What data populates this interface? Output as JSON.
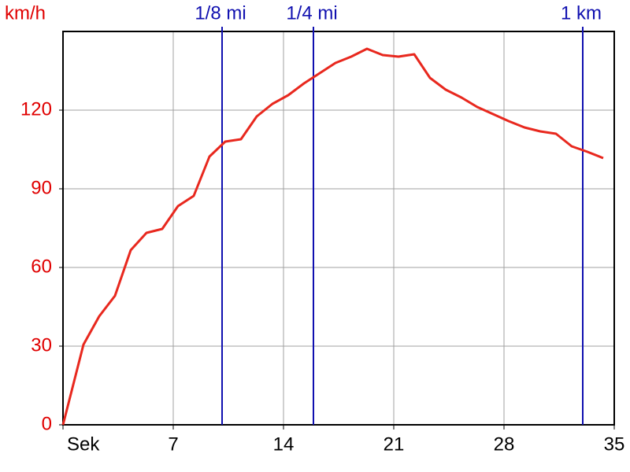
{
  "chart_data": {
    "type": "line",
    "y_label": "km/h",
    "xlim": [
      0,
      35
    ],
    "ylim": [
      0,
      150
    ],
    "xticks": [
      {
        "value": 0,
        "label": "Sek"
      },
      7,
      14,
      21,
      28,
      35
    ],
    "yticks": [
      0,
      30,
      60,
      90,
      120
    ],
    "grid": true,
    "markers": [
      {
        "label": "1/8 mi",
        "x": 10.1
      },
      {
        "label": "1/4 mi",
        "x": 15.9
      },
      {
        "label": "1 km",
        "x": 33.0
      }
    ],
    "marker_color": "#1010b0",
    "series": [
      {
        "color": "#e8281e",
        "x": [
          0,
          1.3,
          2.3,
          3.3,
          4.3,
          5.3,
          6.3,
          7.3,
          8.3,
          9.3,
          10.3,
          11.3,
          12.3,
          13.3,
          14.3,
          15.3,
          16.3,
          17.3,
          18.3,
          19.3,
          20.3,
          21.3,
          22.3,
          23.3,
          24.3,
          25.3,
          26.3,
          27.3,
          28.3,
          29.3,
          30.3,
          31.3,
          32.3,
          33.3,
          34.3
        ],
        "values": [
          0,
          30.6,
          41.4,
          49.2,
          66.6,
          73.2,
          74.7,
          83.4,
          87.3,
          102.3,
          108,
          108.9,
          117.6,
          122.4,
          125.7,
          130.2,
          134.1,
          138,
          140.4,
          143.4,
          141,
          140.4,
          141.3,
          132.3,
          127.8,
          124.8,
          121.2,
          118.5,
          115.8,
          113.4,
          111.9,
          111,
          106.2,
          104.1,
          101.7
        ]
      }
    ]
  }
}
